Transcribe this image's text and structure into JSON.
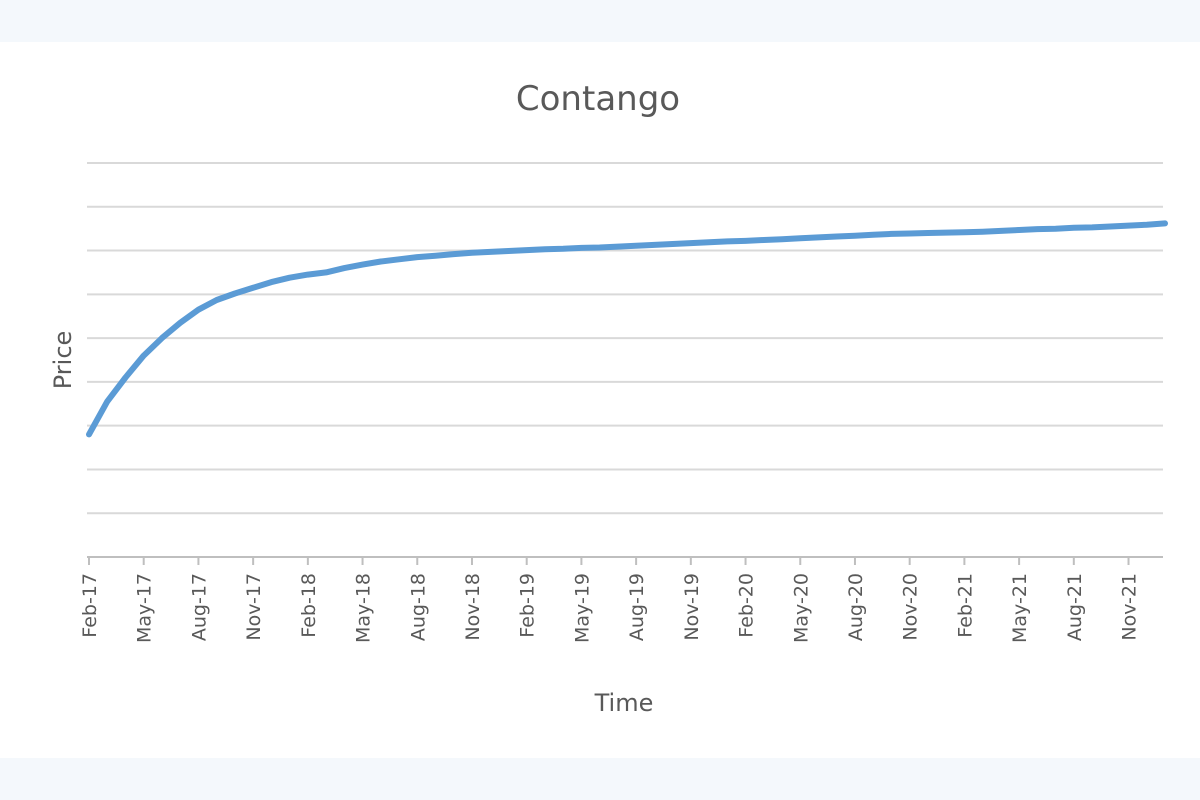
{
  "chart_data": {
    "type": "line",
    "title": "Contango",
    "xlabel": "Time",
    "ylabel": "Price",
    "grid": true,
    "legend": "none",
    "line_color": "#5b9bd5",
    "grid_color": "#d9d9d9",
    "axis_color": "#bfbfbf",
    "text_color": "#595959",
    "y_tick_labels_shown": false,
    "ylim": [
      0,
      9
    ],
    "x_tick_labels": [
      "Feb-17",
      "May-17",
      "Aug-17",
      "Nov-17",
      "Feb-18",
      "May-18",
      "Aug-18",
      "Nov-18",
      "Feb-19",
      "May-19",
      "Aug-19",
      "Nov-19",
      "Feb-20",
      "May-20",
      "Aug-20",
      "Nov-20",
      "Feb-21",
      "May-21",
      "Aug-21",
      "Nov-21"
    ],
    "series": [
      {
        "x": [
          "Feb-17",
          "Mar-17",
          "Apr-17",
          "May-17",
          "Jun-17",
          "Jul-17",
          "Aug-17",
          "Sep-17",
          "Oct-17",
          "Nov-17",
          "Dec-17",
          "Jan-18",
          "Feb-18",
          "Mar-18",
          "Apr-18",
          "May-18",
          "Jun-18",
          "Jul-18",
          "Aug-18",
          "Sep-18",
          "Oct-18",
          "Nov-18",
          "Dec-18",
          "Jan-19",
          "Feb-19",
          "Mar-19",
          "Apr-19",
          "May-19",
          "Jun-19",
          "Jul-19",
          "Aug-19",
          "Sep-19",
          "Oct-19",
          "Nov-19",
          "Dec-19",
          "Jan-20",
          "Feb-20",
          "Mar-20",
          "Apr-20",
          "May-20",
          "Jun-20",
          "Jul-20",
          "Aug-20",
          "Sep-20",
          "Oct-20",
          "Nov-20",
          "Dec-20",
          "Jan-21",
          "Feb-21",
          "Mar-21",
          "Apr-21",
          "May-21",
          "Jun-21",
          "Jul-21",
          "Aug-21",
          "Sep-21",
          "Oct-21",
          "Nov-21",
          "Dec-21",
          "Jan-22"
        ],
        "values": [
          2.8,
          3.55,
          4.1,
          4.6,
          5.0,
          5.35,
          5.65,
          5.87,
          6.02,
          6.15,
          6.28,
          6.38,
          6.45,
          6.5,
          6.6,
          6.68,
          6.75,
          6.8,
          6.85,
          6.88,
          6.92,
          6.95,
          6.97,
          6.99,
          7.01,
          7.03,
          7.04,
          7.06,
          7.07,
          7.09,
          7.11,
          7.13,
          7.15,
          7.17,
          7.19,
          7.21,
          7.22,
          7.24,
          7.26,
          7.28,
          7.3,
          7.32,
          7.34,
          7.36,
          7.38,
          7.39,
          7.4,
          7.41,
          7.42,
          7.43,
          7.45,
          7.47,
          7.49,
          7.5,
          7.52,
          7.53,
          7.55,
          7.57,
          7.59,
          7.62
        ]
      }
    ]
  }
}
